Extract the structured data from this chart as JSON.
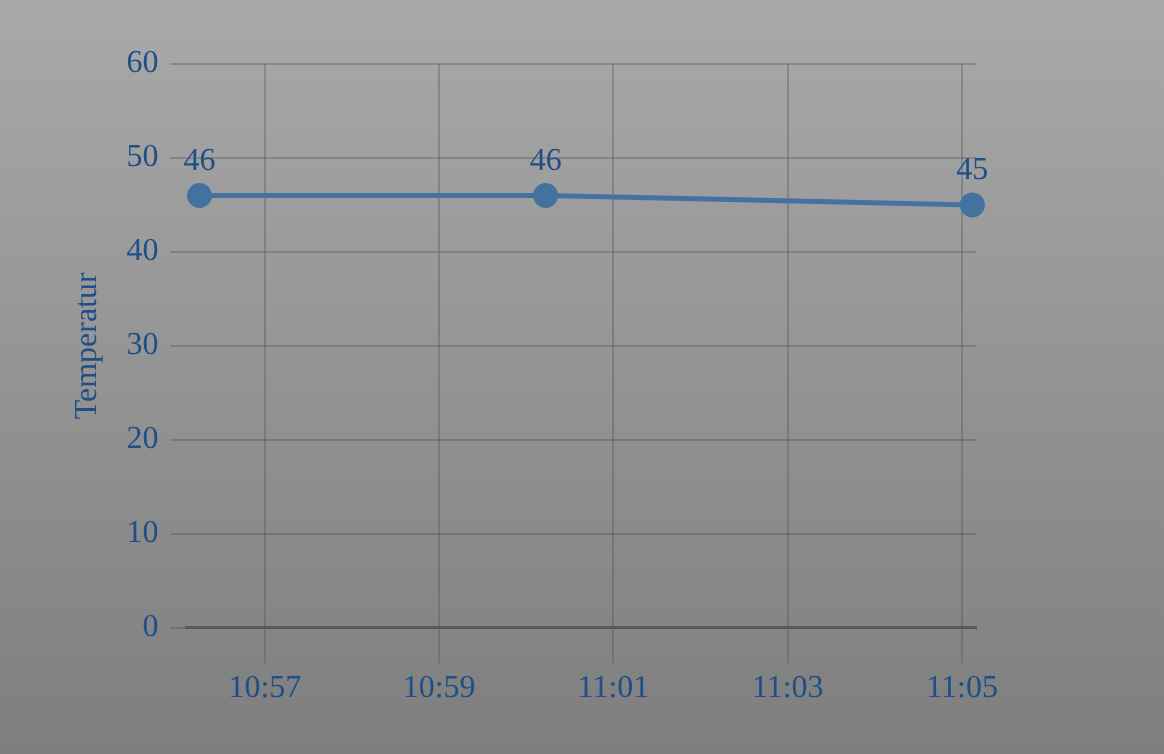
{
  "chart_data": {
    "type": "line",
    "ylabel": "Temperatur",
    "x": [
      10.9375,
      11.0037,
      11.0853
    ],
    "series": [
      {
        "color": "#44729f",
        "values": [
          46,
          46,
          45
        ]
      }
    ],
    "xlim": [
      10.935,
      11.086
    ],
    "xticks": [
      {
        "value": 10.95,
        "label": "10:57"
      },
      {
        "value": 10.98333,
        "label": "10:59"
      },
      {
        "value": 11.01667,
        "label": "11:01"
      },
      {
        "value": 11.05,
        "label": "11:03"
      },
      {
        "value": 11.08333,
        "label": "11:05"
      }
    ],
    "ylim": [
      0,
      60
    ],
    "yticks": [
      0,
      10,
      20,
      30,
      40,
      50,
      60
    ],
    "grid": true,
    "legend": false,
    "marker": "circle",
    "line_style": "solid",
    "data_labels": true
  }
}
